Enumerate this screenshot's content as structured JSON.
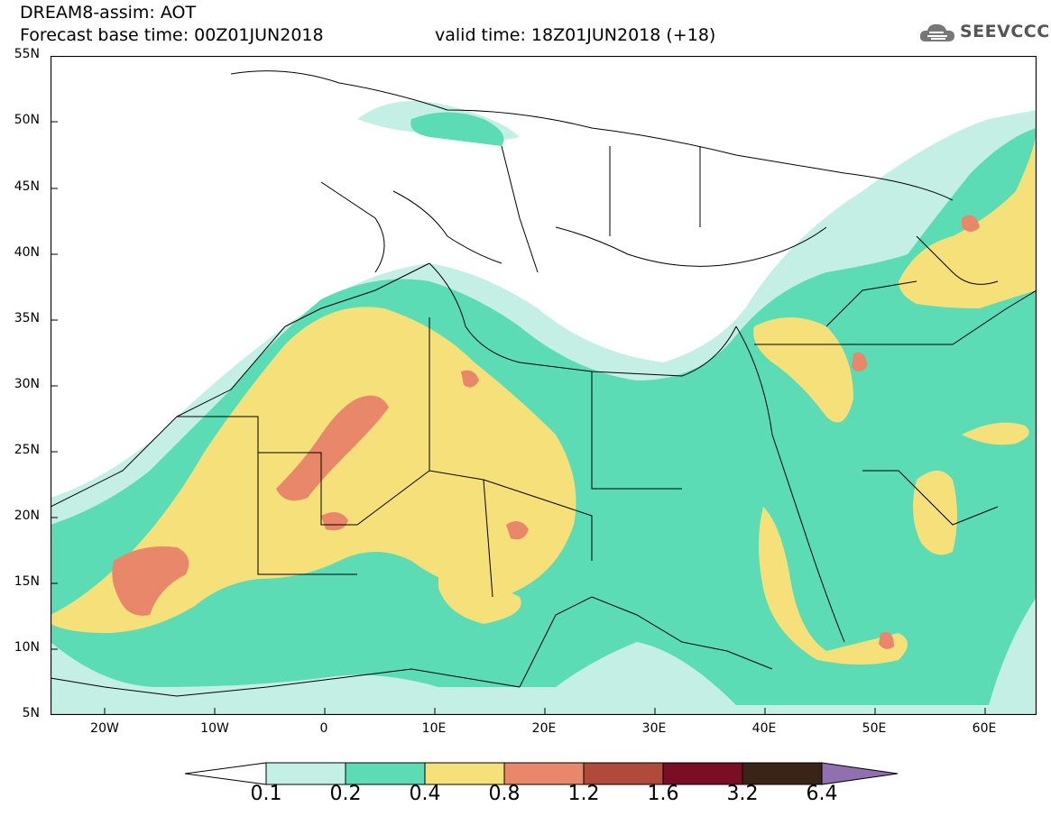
{
  "header": {
    "title_line1": "DREAM8-assim: AOT",
    "title_line2": "Forecast base time: 00Z01JUN2018",
    "valid_time": "valid time: 18Z01JUN2018 (+18)",
    "logo_text": "SEEVCCC",
    "logo_icon": "cloud-icon"
  },
  "map": {
    "lat_labels": [
      "55N",
      "50N",
      "45N",
      "40N",
      "35N",
      "30N",
      "25N",
      "20N",
      "15N",
      "10N",
      "5N"
    ],
    "lon_labels": [
      "20W",
      "10W",
      "0",
      "10E",
      "20E",
      "30E",
      "40E",
      "50E",
      "60E"
    ],
    "lat_range": [
      5,
      55
    ],
    "lon_range": [
      -25,
      65
    ]
  },
  "colorbar": {
    "levels": [
      "0.1",
      "0.2",
      "0.4",
      "0.8",
      "1.2",
      "1.6",
      "3.2",
      "6.4"
    ],
    "colors": [
      "#c3efe4",
      "#5cdcb4",
      "#f5e07a",
      "#e8876a",
      "#b04a3a",
      "#7a0e24",
      "#3a2418",
      "#9070b0"
    ],
    "under_color": "#ffffff"
  }
}
